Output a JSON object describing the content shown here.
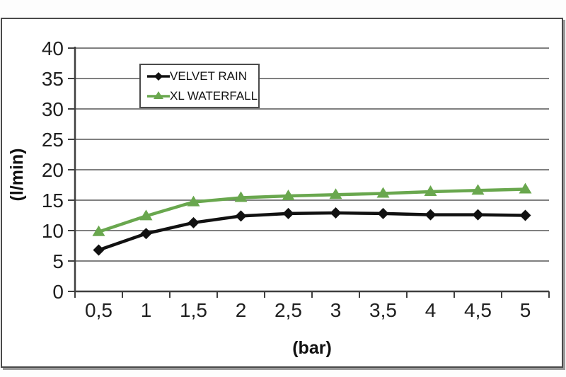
{
  "chart_data": {
    "type": "line",
    "title": "",
    "xlabel": "(bar)",
    "ylabel": "(l/min)",
    "x_categories": [
      "0,5",
      "1",
      "1,5",
      "2",
      "2,5",
      "3",
      "3,5",
      "4",
      "4,5",
      "5"
    ],
    "x_values": [
      0.5,
      1,
      1.5,
      2,
      2.5,
      3,
      3.5,
      4,
      4.5,
      5
    ],
    "ylim": [
      0,
      40
    ],
    "y_tick_step": 5,
    "y_tick_labels": [
      "0",
      "5",
      "10",
      "15",
      "20",
      "25",
      "30",
      "35",
      "40"
    ],
    "grid": true,
    "legend_position": "inside-top-center",
    "series": [
      {
        "name": "VELVET RAIN",
        "color": "#111111",
        "marker": "diamond",
        "values": [
          6.8,
          9.5,
          11.3,
          12.4,
          12.8,
          12.9,
          12.8,
          12.6,
          12.6,
          12.5
        ]
      },
      {
        "name": "XL WATERFALL",
        "color": "#69A74E",
        "marker": "triangle",
        "values": [
          9.8,
          12.4,
          14.7,
          15.4,
          15.7,
          15.9,
          16.1,
          16.4,
          16.6,
          16.8
        ]
      }
    ],
    "style": {
      "gridline_color": "#6e6e6e",
      "axis_color": "#3f3f3f",
      "text_color": "#1f1f1f"
    }
  }
}
